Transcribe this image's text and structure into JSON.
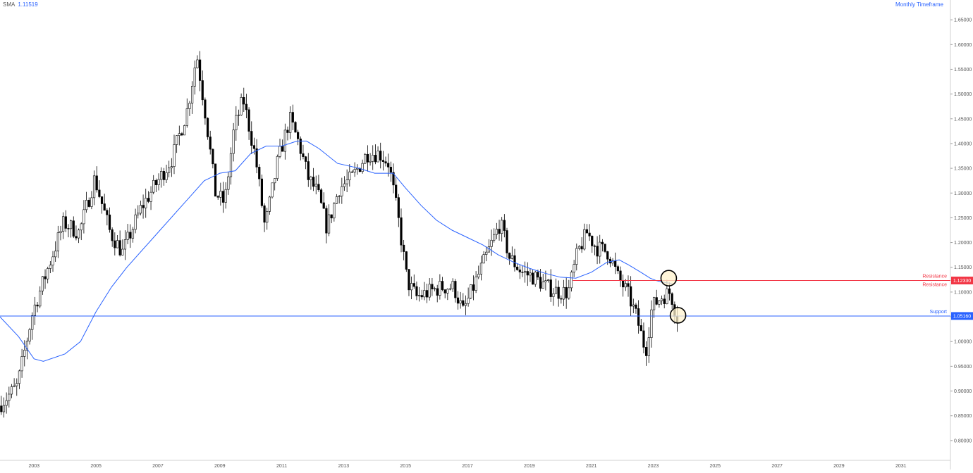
{
  "indicator": {
    "name": "SMA",
    "value": "1.11519"
  },
  "timeframe_label": "Monthly Timeframe",
  "colors": {
    "up_body": "#ffffff",
    "down_body": "#000000",
    "wick": "#000000",
    "sma": "#2962ff",
    "resistance": "#f23645",
    "support": "#2962ff",
    "circle_fill": "#fff3cd",
    "axis_text": "#555555"
  },
  "chart_data": {
    "type": "line",
    "description_series": "candlestick price with SMA",
    "y_axis": {
      "range": [
        0.76,
        1.69
      ],
      "ticks": [
        "1.65000",
        "1.60000",
        "1.55000",
        "1.50000",
        "1.45000",
        "1.40000",
        "1.35000",
        "1.30000",
        "1.25000",
        "1.20000",
        "1.15000",
        "1.10000",
        "1.05000",
        "1.00000",
        "0.95000",
        "0.90000",
        "0.85000",
        "0.80000"
      ]
    },
    "x_axis": {
      "range": [
        2001.9,
        2032.6
      ],
      "ticks": [
        "2003",
        "2005",
        "2007",
        "2009",
        "2011",
        "2013",
        "2015",
        "2017",
        "2019",
        "2021",
        "2023",
        "2025",
        "2027",
        "2029",
        "2031"
      ]
    },
    "levels": [
      {
        "name": "Resistance",
        "value": 1.1233,
        "tag": "1.12330",
        "labels": [
          "Resistance",
          "Resistance"
        ]
      },
      {
        "name": "Support",
        "value": 1.0516,
        "tag": "1.05160",
        "labels": [
          "Support"
        ]
      }
    ],
    "markers": [
      {
        "x": 2023.5,
        "y": 1.128,
        "shape": "circle"
      },
      {
        "x": 2023.8,
        "y": 1.053,
        "shape": "circle"
      }
    ],
    "series": [
      {
        "name": "SMA",
        "points": [
          [
            2001.9,
            1.05
          ],
          [
            2002.5,
            1.01
          ],
          [
            2003.0,
            0.965
          ],
          [
            2003.3,
            0.96
          ],
          [
            2004.0,
            0.975
          ],
          [
            2004.5,
            1.0
          ],
          [
            2005.0,
            1.06
          ],
          [
            2005.5,
            1.11
          ],
          [
            2006.0,
            1.15
          ],
          [
            2007.0,
            1.22
          ],
          [
            2008.0,
            1.29
          ],
          [
            2008.5,
            1.325
          ],
          [
            2009.0,
            1.34
          ],
          [
            2009.5,
            1.345
          ],
          [
            2010.0,
            1.38
          ],
          [
            2010.5,
            1.395
          ],
          [
            2011.0,
            1.395
          ],
          [
            2011.5,
            1.405
          ],
          [
            2011.8,
            1.405
          ],
          [
            2012.2,
            1.39
          ],
          [
            2012.8,
            1.36
          ],
          [
            2013.5,
            1.35
          ],
          [
            2014.0,
            1.34
          ],
          [
            2014.6,
            1.34
          ],
          [
            2015.0,
            1.31
          ],
          [
            2015.5,
            1.275
          ],
          [
            2016.0,
            1.245
          ],
          [
            2016.5,
            1.225
          ],
          [
            2017.0,
            1.21
          ],
          [
            2017.5,
            1.195
          ],
          [
            2018.0,
            1.175
          ],
          [
            2018.5,
            1.16
          ],
          [
            2019.0,
            1.148
          ],
          [
            2019.5,
            1.138
          ],
          [
            2020.0,
            1.13
          ],
          [
            2020.5,
            1.128
          ],
          [
            2021.0,
            1.14
          ],
          [
            2021.5,
            1.16
          ],
          [
            2021.9,
            1.165
          ],
          [
            2022.2,
            1.155
          ],
          [
            2022.6,
            1.14
          ],
          [
            2022.9,
            1.128
          ],
          [
            2023.1,
            1.123
          ],
          [
            2023.3,
            1.12
          ],
          [
            2023.6,
            1.117
          ]
        ]
      },
      {
        "name": "Price",
        "points": [
          [
            2001.9,
            0.87
          ],
          [
            2002.5,
            0.91
          ],
          [
            2003.0,
            1.06
          ],
          [
            2003.5,
            1.15
          ],
          [
            2004.0,
            1.24
          ],
          [
            2004.5,
            1.22
          ],
          [
            2005.0,
            1.33
          ],
          [
            2005.5,
            1.22
          ],
          [
            2005.9,
            1.18
          ],
          [
            2006.5,
            1.27
          ],
          [
            2007.0,
            1.32
          ],
          [
            2007.5,
            1.37
          ],
          [
            2008.0,
            1.47
          ],
          [
            2008.3,
            1.58
          ],
          [
            2008.6,
            1.45
          ],
          [
            2008.9,
            1.3
          ],
          [
            2009.2,
            1.28
          ],
          [
            2009.5,
            1.43
          ],
          [
            2009.8,
            1.49
          ],
          [
            2010.2,
            1.37
          ],
          [
            2010.5,
            1.23
          ],
          [
            2010.9,
            1.36
          ],
          [
            2011.3,
            1.45
          ],
          [
            2011.6,
            1.4
          ],
          [
            2011.9,
            1.33
          ],
          [
            2012.2,
            1.3
          ],
          [
            2012.5,
            1.23
          ],
          [
            2012.9,
            1.31
          ],
          [
            2013.3,
            1.33
          ],
          [
            2013.8,
            1.38
          ],
          [
            2014.2,
            1.38
          ],
          [
            2014.5,
            1.36
          ],
          [
            2014.8,
            1.25
          ],
          [
            2015.1,
            1.12
          ],
          [
            2015.4,
            1.09
          ],
          [
            2015.8,
            1.1
          ],
          [
            2016.2,
            1.11
          ],
          [
            2016.6,
            1.11
          ],
          [
            2016.9,
            1.06
          ],
          [
            2017.3,
            1.12
          ],
          [
            2017.7,
            1.18
          ],
          [
            2018.1,
            1.24
          ],
          [
            2018.4,
            1.17
          ],
          [
            2018.8,
            1.14
          ],
          [
            2019.2,
            1.13
          ],
          [
            2019.6,
            1.11
          ],
          [
            2020.0,
            1.1
          ],
          [
            2020.3,
            1.1
          ],
          [
            2020.6,
            1.18
          ],
          [
            2020.9,
            1.22
          ],
          [
            2021.2,
            1.19
          ],
          [
            2021.6,
            1.18
          ],
          [
            2021.9,
            1.13
          ],
          [
            2022.2,
            1.1
          ],
          [
            2022.5,
            1.05
          ],
          [
            2022.8,
            0.98
          ],
          [
            2023.0,
            1.07
          ],
          [
            2023.3,
            1.09
          ],
          [
            2023.6,
            1.1
          ],
          [
            2023.8,
            1.05
          ]
        ]
      }
    ]
  }
}
